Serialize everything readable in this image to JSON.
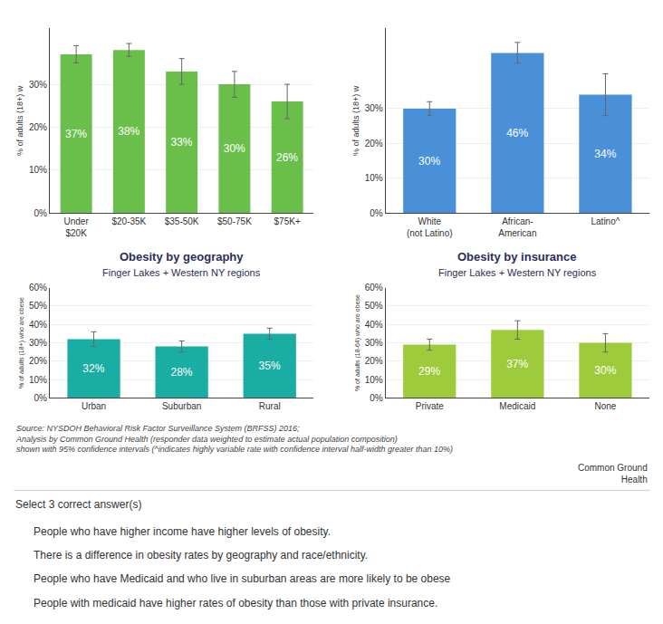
{
  "chart_data": [
    {
      "type": "bar",
      "ylabel": "% of adults (18+) w",
      "categories": [
        "Under\n$20K",
        "$20-35K",
        "$35-50K",
        "$50-75K",
        "$75K+"
      ],
      "values": [
        37,
        38,
        33,
        30,
        26
      ],
      "errors": [
        2,
        1.5,
        3,
        3,
        4
      ],
      "value_labels": [
        "37%",
        "38%",
        "33%",
        "30%",
        "26%"
      ],
      "data_labels": true,
      "color": "#6abf4b",
      "ylim": [
        0,
        43
      ],
      "yticks": [
        {
          "value": 0,
          "label": "0%"
        },
        {
          "value": 10,
          "label": "10%"
        },
        {
          "value": 20,
          "label": "20%"
        },
        {
          "value": 30,
          "label": "30%"
        }
      ],
      "grid": true
    },
    {
      "type": "bar",
      "ylabel": "% of adults (18+) w",
      "categories": [
        "White\n(not Latino)",
        "African-\nAmerican",
        "Latino^"
      ],
      "values": [
        30,
        46,
        34
      ],
      "errors": [
        2,
        3,
        6
      ],
      "value_labels": [
        "30%",
        "46%",
        "34%"
      ],
      "data_labels": true,
      "color": "#4a90d9",
      "ylim": [
        0,
        53
      ],
      "yticks": [
        {
          "value": 0,
          "label": "0%"
        },
        {
          "value": 10,
          "label": "10%"
        },
        {
          "value": 20,
          "label": "20%"
        },
        {
          "value": 30,
          "label": "30%"
        }
      ],
      "grid": true
    },
    {
      "type": "bar",
      "title": "Obesity by geography",
      "subtitle": "Finger Lakes + Western NY regions",
      "ylabel": "% of adults (18+) who are obese",
      "categories": [
        "Urban",
        "Suburban",
        "Rural"
      ],
      "values": [
        32,
        28,
        35
      ],
      "errors": [
        4,
        3,
        3
      ],
      "value_labels": [
        "32%",
        "28%",
        "35%"
      ],
      "data_labels": true,
      "color": "#1aada3",
      "ylim": [
        0,
        60
      ],
      "yticks": [
        {
          "value": 0,
          "label": "0%"
        },
        {
          "value": 10,
          "label": "10%"
        },
        {
          "value": 20,
          "label": "20%"
        },
        {
          "value": 30,
          "label": "30%"
        },
        {
          "value": 40,
          "label": "40%"
        },
        {
          "value": 50,
          "label": "50%"
        },
        {
          "value": 60,
          "label": "60%"
        }
      ],
      "grid": true
    },
    {
      "type": "bar",
      "title": "Obesity by insurance",
      "subtitle": "Finger Lakes + Western NY regions",
      "ylabel": "% of adults (18-64) who are obese",
      "categories": [
        "Private",
        "Medicaid",
        "None"
      ],
      "values": [
        29,
        37,
        30
      ],
      "errors": [
        3,
        5,
        5
      ],
      "value_labels": [
        "29%",
        "37%",
        "30%"
      ],
      "data_labels": true,
      "color": "#9ecb3c",
      "ylim": [
        0,
        60
      ],
      "yticks": [
        {
          "value": 0,
          "label": "0%"
        },
        {
          "value": 10,
          "label": "10%"
        },
        {
          "value": 20,
          "label": "20%"
        },
        {
          "value": 30,
          "label": "30%"
        },
        {
          "value": 40,
          "label": "40%"
        },
        {
          "value": 50,
          "label": "50%"
        },
        {
          "value": 60,
          "label": "60%"
        }
      ],
      "grid": true
    }
  ],
  "annotations": [
    "Source: NYSDOH Behavioral Risk Factor Surveillance System (BRFSS) 2016;\nAnalysis by Common Ground Health (responder data weighted to estimate actual population composition)\nshown with 95% confidence intervals (^indicates highly variable rate with confidence interval half-width greater than 10%)",
    "Common Ground\nHealth",
    "Select 3 correct answer(s)",
    "People who have higher income have higher levels of obesity.",
    "There is a difference in obesity rates by geography and race/ethnicity.",
    "People who have Medicaid and who live in suburban areas are more likely to be obese",
    "People with medicaid have higher rates of obesity than those with private insurance."
  ]
}
